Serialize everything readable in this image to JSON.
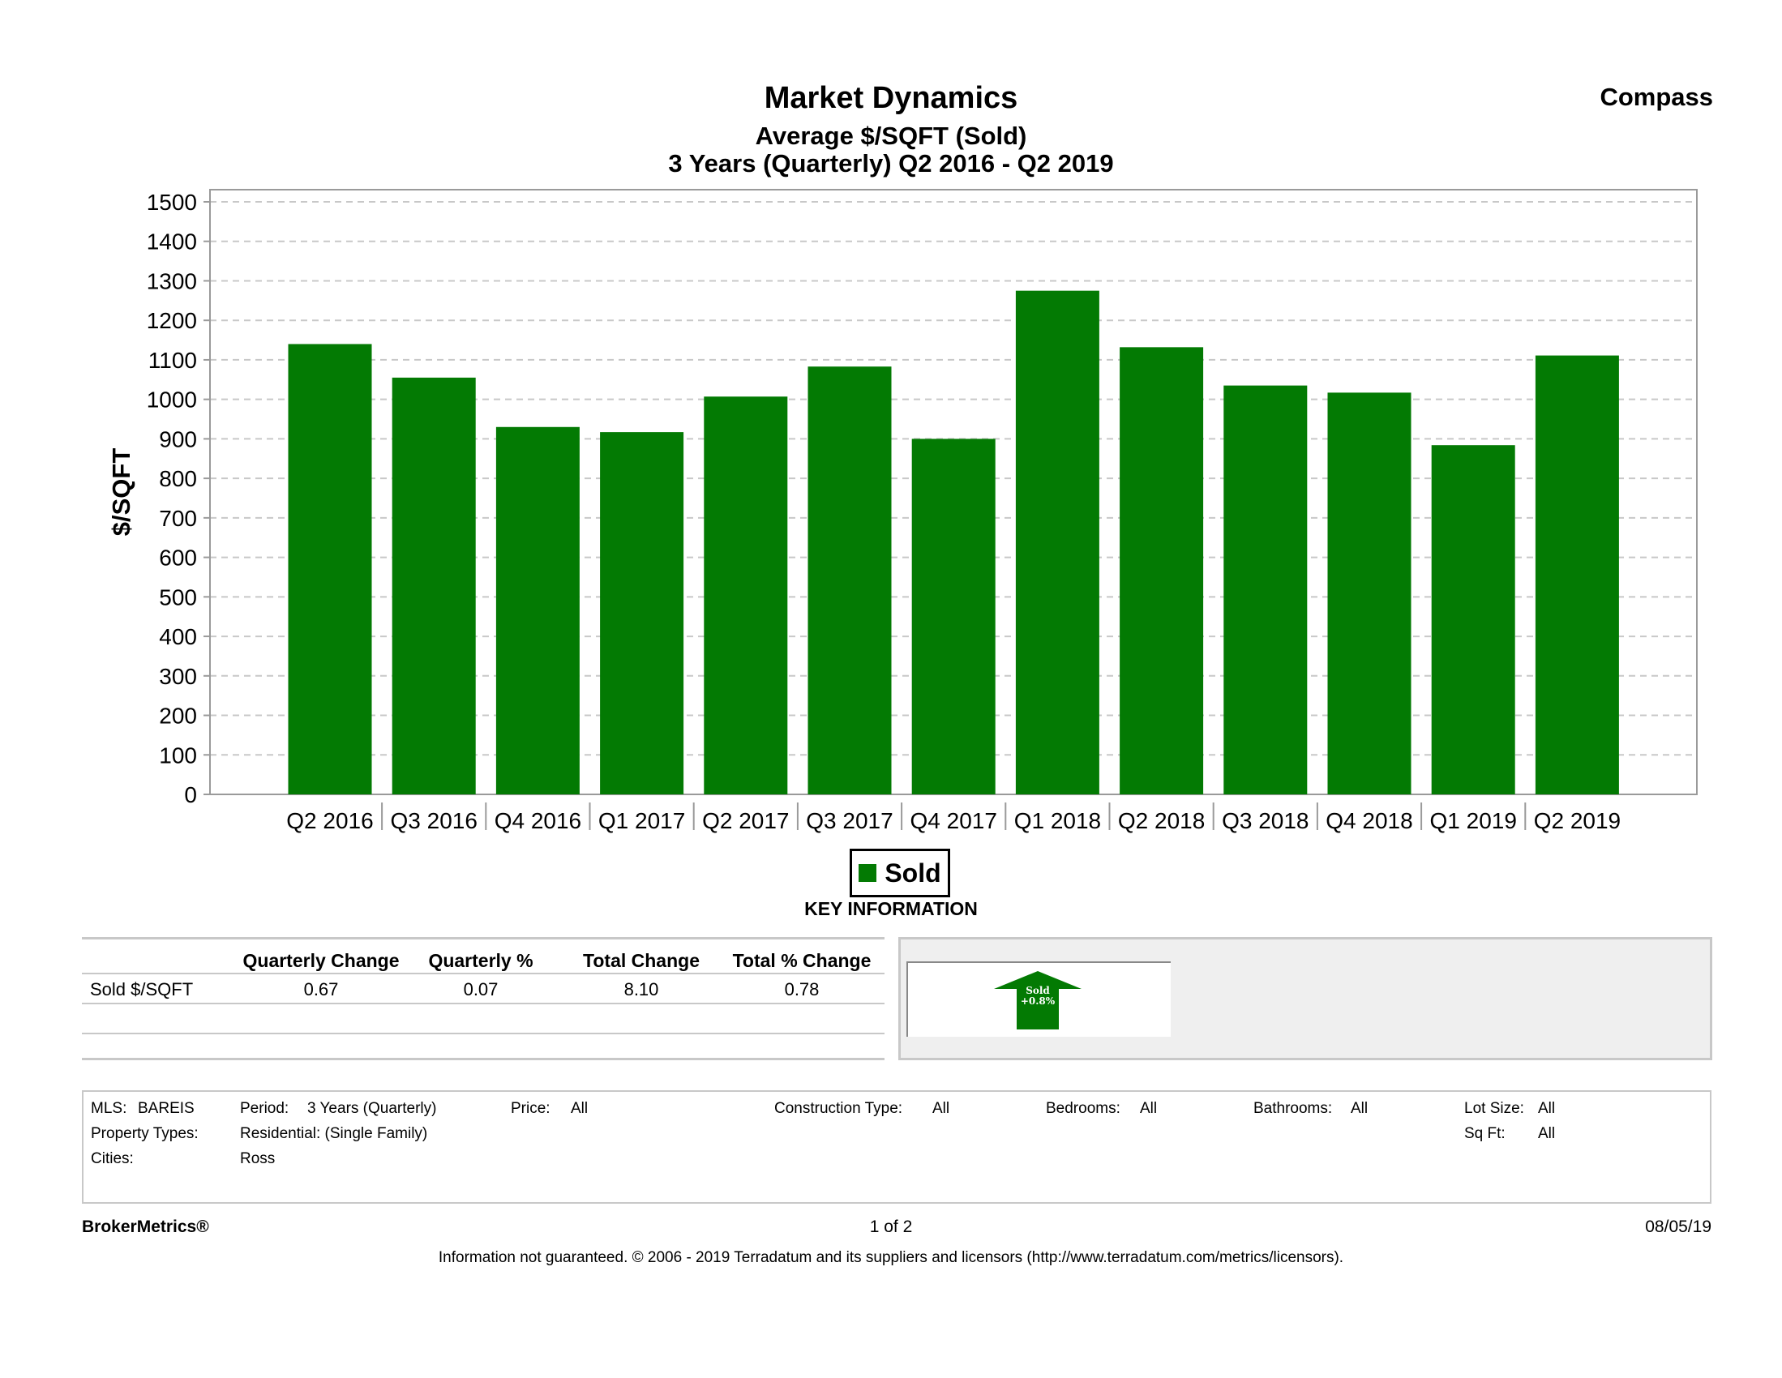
{
  "header": {
    "title": "Market Dynamics",
    "subtitle": "Average $/SQFT (Sold)",
    "period": "3 Years (Quarterly) Q2 2016 - Q2 2019",
    "brand": "Compass"
  },
  "chart_data": {
    "type": "bar",
    "ylabel": "$/SQFT",
    "ylim": [
      0,
      1500
    ],
    "yticks": [
      0,
      100,
      200,
      300,
      400,
      500,
      600,
      700,
      800,
      900,
      1000,
      1100,
      1200,
      1300,
      1400,
      1500
    ],
    "grid": true,
    "legend_position": "bottom-center",
    "categories": [
      "Q2 2016",
      "Q3 2016",
      "Q4 2016",
      "Q1 2017",
      "Q2 2017",
      "Q3 2017",
      "Q4 2017",
      "Q1 2018",
      "Q2 2018",
      "Q3 2018",
      "Q4 2018",
      "Q1 2019",
      "Q2 2019"
    ],
    "series": [
      {
        "name": "Sold",
        "color": "#037a03",
        "values": [
          1140,
          1055,
          930,
          917,
          1007,
          1083,
          900,
          1275,
          1132,
          1035,
          1017,
          884,
          1111
        ]
      }
    ]
  },
  "legend": {
    "label": "Sold",
    "color": "#037a03"
  },
  "key_info": {
    "heading": "KEY INFORMATION",
    "columns": [
      "Quarterly Change",
      "Quarterly %",
      "Total Change",
      "Total % Change"
    ],
    "row_label": "Sold $/SQFT",
    "values": [
      "0.67",
      "0.07",
      "8.10",
      "0.78"
    ]
  },
  "indicator": {
    "line1": "Sold",
    "line2": "+0.8%",
    "direction": "up",
    "color": "#037a03"
  },
  "filters": {
    "mls_label": "MLS:",
    "mls": "BAREIS",
    "period_label": "Period:",
    "period": "3 Years (Quarterly)",
    "price_label": "Price:",
    "price": "All",
    "construction_label": "Construction Type:",
    "construction": "All",
    "bedrooms_label": "Bedrooms:",
    "bedrooms": "All",
    "bathrooms_label": "Bathrooms:",
    "bathrooms": "All",
    "lot_label": "Lot Size:",
    "lot": "All",
    "property_label": "Property Types:",
    "property": "Residential: (Single Family)",
    "sqft_label": "Sq Ft:",
    "sqft": "All",
    "cities_label": "Cities:",
    "cities": "Ross"
  },
  "footer": {
    "brand": "BrokerMetrics®",
    "page": "1 of 2",
    "date": "08/05/19",
    "disclaimer": "Information not guaranteed.  © 2006 - 2019 Terradatum and its suppliers and licensors (http://www.terradatum.com/metrics/licensors)."
  }
}
